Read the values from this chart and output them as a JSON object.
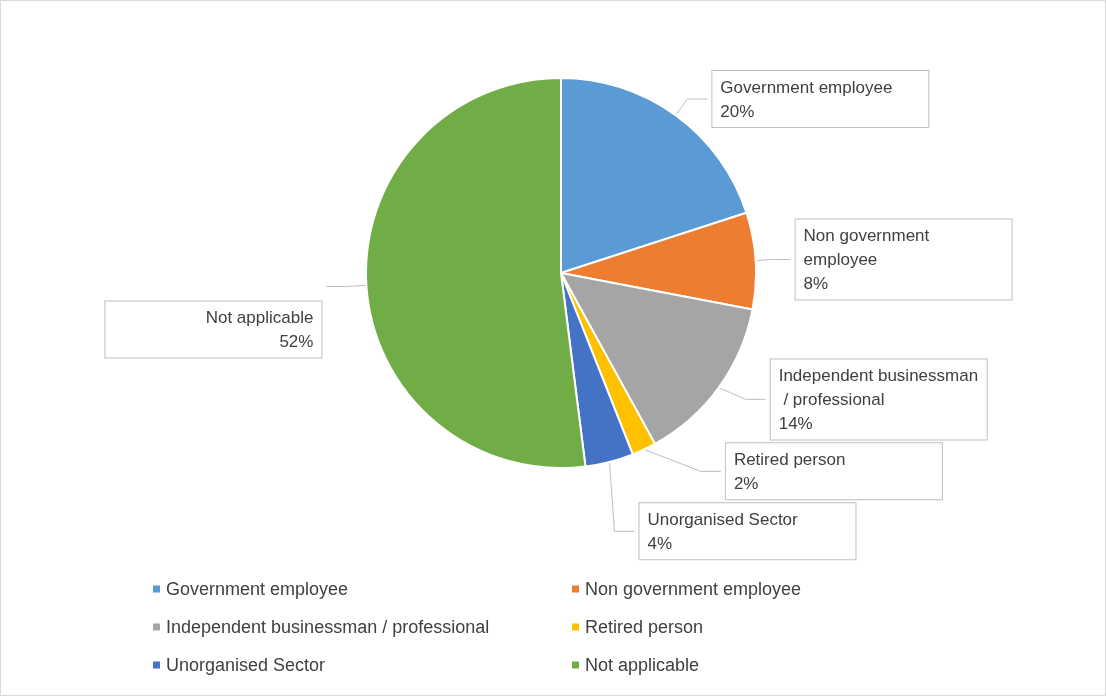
{
  "chart_data": {
    "type": "pie",
    "categories": [
      "Government employee",
      "Non government employee",
      "Independent businessman / professional",
      "Retired person",
      "Unorganised Sector",
      "Not applicable"
    ],
    "values": [
      20,
      8,
      14,
      2,
      4,
      52
    ],
    "colors": [
      "#5b9bd5",
      "#ed7d31",
      "#a5a5a5",
      "#ffc000",
      "#4472c4",
      "#70ad47"
    ],
    "value_labels": [
      "20%",
      "8%",
      "14%",
      "2%",
      "4%",
      "52%"
    ],
    "legend": "bottom"
  }
}
